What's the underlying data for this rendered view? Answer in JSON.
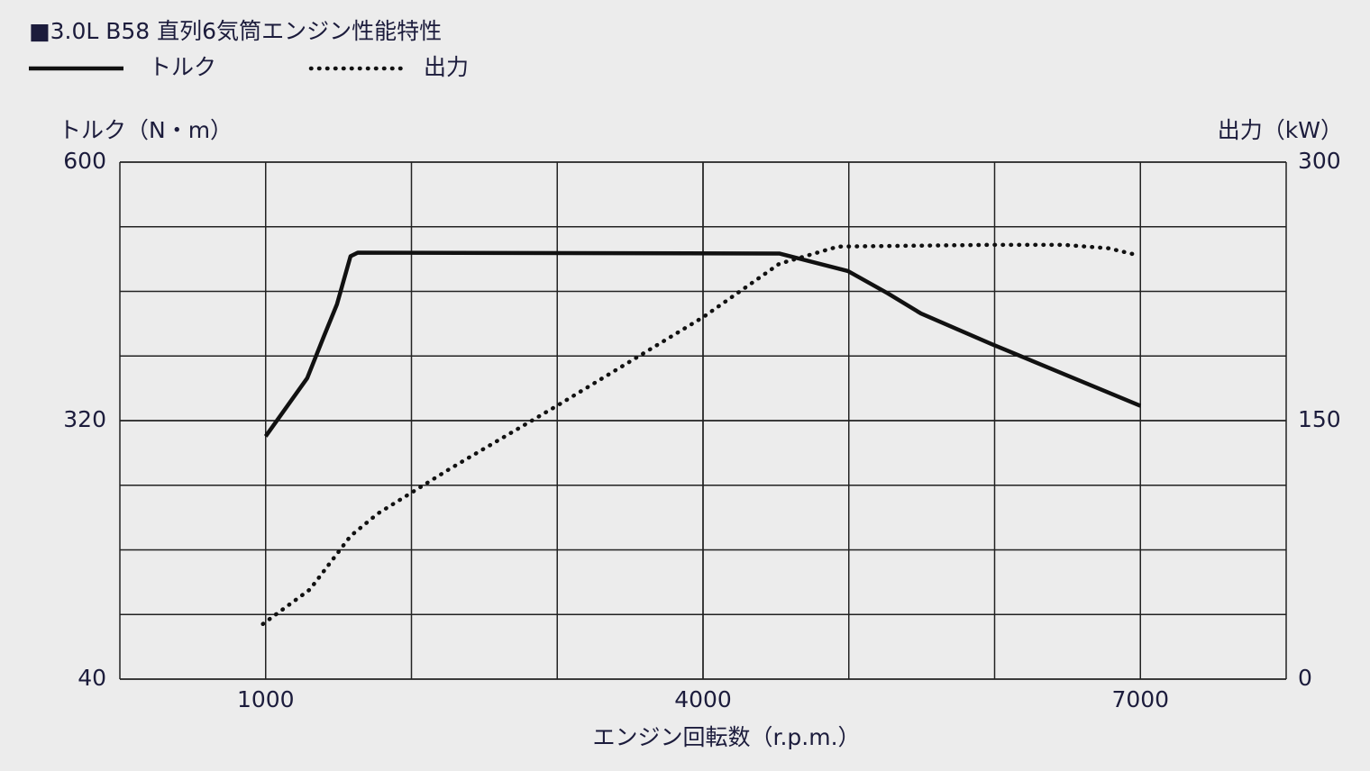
{
  "chart_data": {
    "type": "line",
    "title": "■3.0L B58 直列6気筒エンジン性能特性",
    "x_label": "エンジン回転数（r.p.m.）",
    "y_label": "トルク（N・m）",
    "y2_label": "出力（kW）",
    "xlim": [
      0,
      8000
    ],
    "xticks": [
      1000,
      4000,
      7000
    ],
    "x_gridlines": [
      1000,
      2000,
      3000,
      4000,
      5000,
      6000,
      7000
    ],
    "ylim": [
      40,
      600
    ],
    "yticks": [
      40,
      320,
      600
    ],
    "y_gridlines": [
      110,
      180,
      250,
      390,
      460,
      530
    ],
    "y2lim": [
      0,
      300
    ],
    "y2ticks": [
      0,
      150,
      300
    ],
    "grid": true,
    "legend": "top-left",
    "series": [
      {
        "name": "トルク",
        "color": "#111111",
        "style": "solid",
        "x": [
          1000,
          1285,
          1396,
          1489,
          1582,
          1632,
          4523,
          4994,
          5266,
          5495,
          5978,
          7000
        ],
        "values": [
          303,
          366,
          410,
          446,
          498,
          502,
          501,
          482,
          458,
          436,
          403,
          336
        ]
      },
      {
        "name": "出力",
        "color": "#111111",
        "style": "dotted",
        "axis": "y2",
        "x": [
          981,
          1303,
          1582,
          1768,
          2263,
          3006,
          4000,
          4523,
          4926,
          5978,
          6474,
          6783,
          6981
        ],
        "values": [
          32,
          52,
          83,
          96,
          122,
          159,
          210,
          241,
          251,
          252,
          252,
          250,
          246
        ]
      }
    ]
  }
}
